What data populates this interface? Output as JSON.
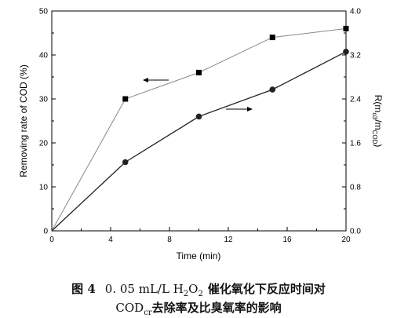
{
  "chart_data": {
    "type": "line",
    "xlabel": "Time (min)",
    "ylabel_left": "Removing rate of COD (%)",
    "ylabel_right_main": "R(m",
    "ylabel_right_sub1": "o3",
    "ylabel_right_mid": "/m",
    "ylabel_right_sub2": "COD",
    "ylabel_right_end": ")",
    "xlim": [
      0,
      20
    ],
    "ylim_left": [
      0,
      50
    ],
    "ylim_right": [
      0,
      4.0
    ],
    "x_ticks": [
      "0",
      "4",
      "8",
      "12",
      "16",
      "20"
    ],
    "y_left_ticks": [
      "0",
      "10",
      "20",
      "30",
      "40",
      "50"
    ],
    "y_right_ticks": [
      "0.0",
      "0.8",
      "1.6",
      "2.4",
      "3.2",
      "4.0"
    ],
    "series": [
      {
        "marker": "square",
        "axis": "left",
        "color": "#888888",
        "x": [
          0,
          5,
          10,
          15,
          20
        ],
        "y": [
          0,
          30,
          36,
          44,
          46
        ]
      },
      {
        "marker": "circle",
        "axis": "right",
        "color": "#222222",
        "x": [
          0,
          5,
          10,
          15,
          20
        ],
        "y": [
          0,
          1.25,
          2.08,
          2.57,
          3.26
        ]
      }
    ]
  },
  "caption": {
    "label": "图 4",
    "formula_text": "0. 05 mL/L H",
    "formula_sub1": "2",
    "formula_mid": "O",
    "formula_sub2": "2",
    "line1_rest": "催化氧化下反应时间对",
    "line2_pre": "COD",
    "line2_sub": "cr",
    "line2_rest": "去除率及比臭氧率的影响"
  }
}
